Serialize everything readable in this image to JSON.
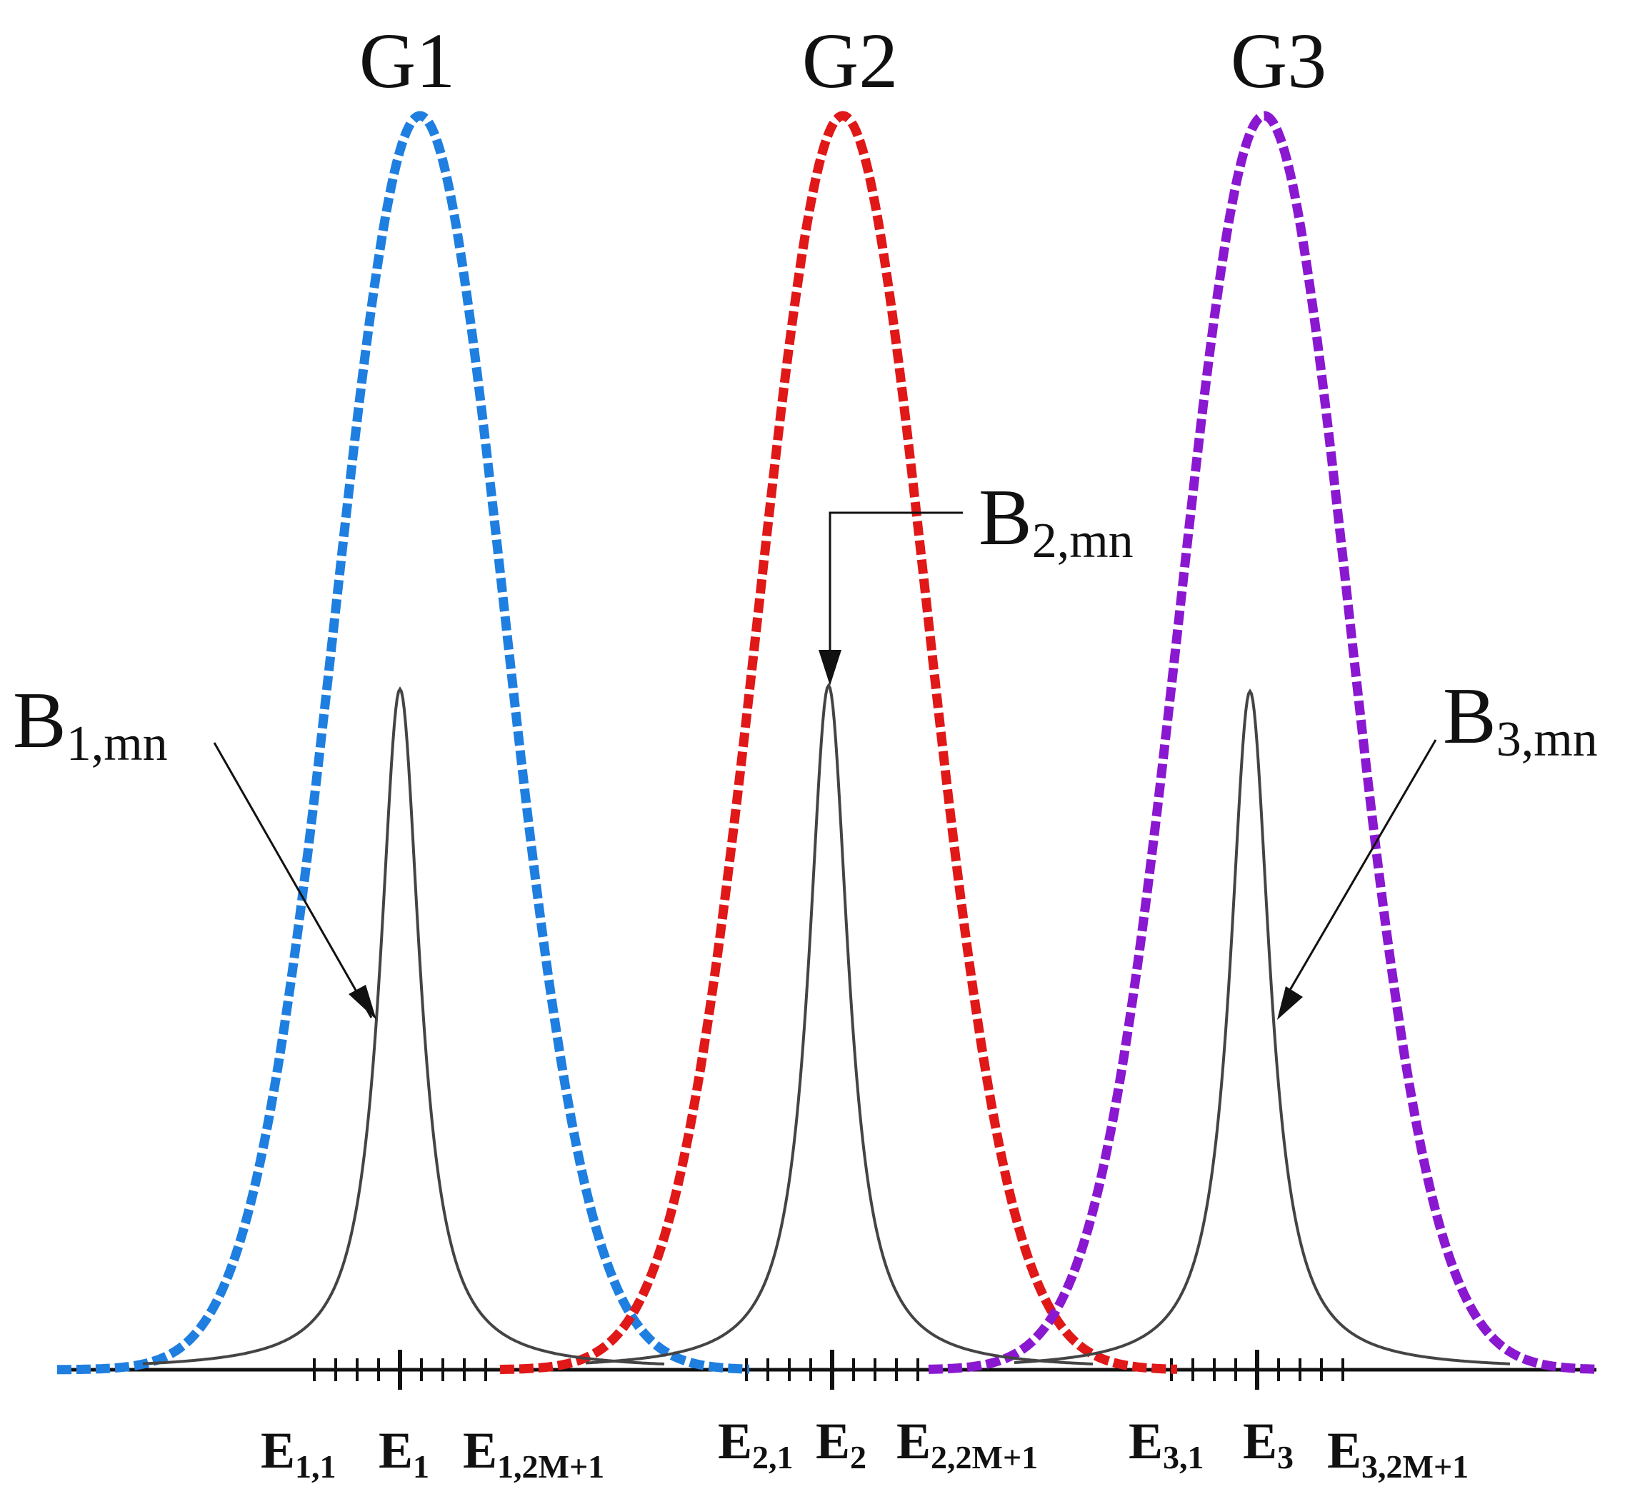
{
  "colors": {
    "g1": "#1f7fe0",
    "g2": "#e01818",
    "g3": "#8a18d0",
    "b_curve": "#444444",
    "axis": "#111111"
  },
  "peaks": [
    {
      "id": "g1",
      "title": "G1",
      "b_main": "B",
      "b_sub": "1,mn",
      "e_left_main": "E",
      "e_left_sub": "1,1",
      "e_center_main": "E",
      "e_center_sub": "1",
      "e_right_main": "E",
      "e_right_sub": "1,2M+1"
    },
    {
      "id": "g2",
      "title": "G2",
      "b_main": "B",
      "b_sub": "2,mn",
      "e_left_main": "E",
      "e_left_sub": "2,1",
      "e_center_main": "E",
      "e_center_sub": "2",
      "e_right_main": "E",
      "e_right_sub": "2,2M+1"
    },
    {
      "id": "g3",
      "title": "G3",
      "b_main": "B",
      "b_sub": "3,mn",
      "e_left_main": "E",
      "e_left_sub": "3,1",
      "e_center_main": "E",
      "e_center_sub": "3",
      "e_right_main": "E",
      "e_right_sub": "3,2M+1"
    }
  ]
}
